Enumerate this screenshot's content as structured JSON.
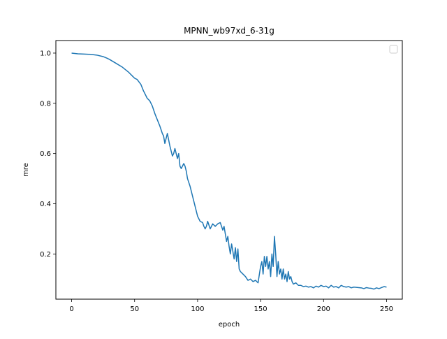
{
  "chart_data": {
    "type": "line",
    "title": "MPNN_wb97xd_6-31g",
    "xlabel": "epoch",
    "ylabel": "mre",
    "xlim": [
      -12.5,
      262.5
    ],
    "ylim": [
      0.02,
      1.05
    ],
    "xticks": [
      0,
      50,
      100,
      150,
      200,
      250
    ],
    "yticks": [
      0.2,
      0.4,
      0.6,
      0.8,
      1.0
    ],
    "xtick_labels": [
      "0",
      "50",
      "100",
      "150",
      "200",
      "250"
    ],
    "ytick_labels": [
      "0.2",
      "0.4",
      "0.6",
      "0.8",
      "1.0"
    ],
    "grid": false,
    "legend": {
      "placement": "top-right",
      "entries": []
    },
    "line_color": "#1f77b4",
    "series": [
      {
        "x": [
          0,
          5,
          10,
          15,
          20,
          25,
          28,
          30,
          35,
          40,
          45,
          48,
          50,
          52,
          55,
          57,
          60,
          62,
          64,
          66,
          68,
          70,
          72,
          73,
          74,
          75,
          76,
          78,
          80,
          81,
          82,
          83,
          84,
          85,
          86,
          87,
          88,
          89,
          90,
          91,
          92,
          94,
          96,
          98,
          100,
          102,
          104,
          105,
          106,
          107,
          108,
          110,
          112,
          114,
          116,
          118,
          119,
          120,
          121,
          122,
          123,
          124,
          125,
          126,
          127,
          128,
          129,
          130,
          131,
          132,
          133,
          134,
          135,
          136,
          138,
          140,
          142,
          144,
          146,
          148,
          150,
          151,
          152,
          153,
          154,
          155,
          156,
          157,
          158,
          159,
          160,
          161,
          162,
          163,
          164,
          165,
          166,
          167,
          168,
          169,
          170,
          171,
          172,
          173,
          174,
          175,
          176,
          178,
          180,
          182,
          184,
          186,
          188,
          190,
          192,
          194,
          196,
          198,
          200,
          202,
          204,
          206,
          208,
          210,
          212,
          214,
          216,
          218,
          220,
          222,
          224,
          226,
          228,
          230,
          232,
          234,
          236,
          238,
          240,
          242,
          244,
          246,
          248,
          250
        ],
        "y": [
          1.0,
          0.997,
          0.996,
          0.995,
          0.992,
          0.986,
          0.98,
          0.975,
          0.96,
          0.945,
          0.925,
          0.91,
          0.9,
          0.895,
          0.875,
          0.85,
          0.82,
          0.81,
          0.79,
          0.76,
          0.735,
          0.71,
          0.68,
          0.67,
          0.64,
          0.66,
          0.68,
          0.63,
          0.59,
          0.6,
          0.62,
          0.6,
          0.58,
          0.6,
          0.55,
          0.54,
          0.55,
          0.56,
          0.55,
          0.53,
          0.5,
          0.47,
          0.43,
          0.39,
          0.35,
          0.33,
          0.325,
          0.31,
          0.3,
          0.31,
          0.33,
          0.3,
          0.32,
          0.31,
          0.32,
          0.325,
          0.31,
          0.295,
          0.31,
          0.28,
          0.25,
          0.27,
          0.23,
          0.2,
          0.24,
          0.21,
          0.18,
          0.225,
          0.17,
          0.22,
          0.14,
          0.13,
          0.125,
          0.12,
          0.11,
          0.095,
          0.1,
          0.09,
          0.095,
          0.085,
          0.15,
          0.17,
          0.12,
          0.19,
          0.15,
          0.19,
          0.14,
          0.17,
          0.11,
          0.2,
          0.15,
          0.27,
          0.2,
          0.11,
          0.17,
          0.12,
          0.14,
          0.1,
          0.14,
          0.1,
          0.12,
          0.09,
          0.13,
          0.1,
          0.11,
          0.09,
          0.08,
          0.085,
          0.075,
          0.075,
          0.07,
          0.072,
          0.068,
          0.07,
          0.065,
          0.072,
          0.068,
          0.075,
          0.07,
          0.072,
          0.065,
          0.075,
          0.068,
          0.07,
          0.065,
          0.075,
          0.07,
          0.068,
          0.07,
          0.065,
          0.068,
          0.067,
          0.066,
          0.065,
          0.062,
          0.066,
          0.064,
          0.063,
          0.06,
          0.065,
          0.062,
          0.066,
          0.07,
          0.068
        ]
      }
    ]
  }
}
